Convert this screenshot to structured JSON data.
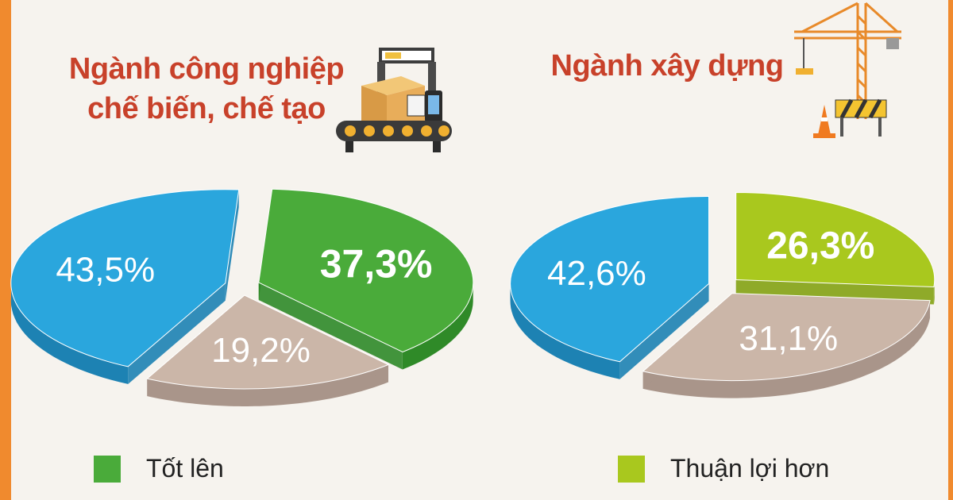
{
  "titles": {
    "left": "Ngành công nghiệp chế biến, chế tạo",
    "right": "Ngành xây dựng"
  },
  "legend": {
    "left_label": "Tốt lên",
    "right_label": "Thuận lợi hơn"
  },
  "chart_data": [
    {
      "type": "pie",
      "title": "Ngành công nghiệp chế biến, chế tạo",
      "slices": [
        {
          "label": "37,3%",
          "value": 37.3,
          "color": "#4aab3a",
          "side": "#2f8a28"
        },
        {
          "label": "19,2%",
          "value": 19.2,
          "color": "#cbb6a8",
          "side": "#a9958a"
        },
        {
          "label": "43,5%",
          "value": 43.5,
          "color": "#2aa6dd",
          "side": "#1d82b3"
        }
      ],
      "legend": [
        {
          "name": "Tốt lên",
          "color": "#4aab3a"
        }
      ]
    },
    {
      "type": "pie",
      "title": "Ngành xây dựng",
      "slices": [
        {
          "label": "26,3%",
          "value": 26.3,
          "color": "#a9c81e",
          "side": "#84a213"
        },
        {
          "label": "31,1%",
          "value": 31.1,
          "color": "#cbb6a8",
          "side": "#a9958a"
        },
        {
          "label": "42,6%",
          "value": 42.6,
          "color": "#2aa6dd",
          "side": "#1d82b3"
        }
      ],
      "legend": [
        {
          "name": "Thuận lợi hơn",
          "color": "#a9c81e"
        }
      ]
    }
  ]
}
